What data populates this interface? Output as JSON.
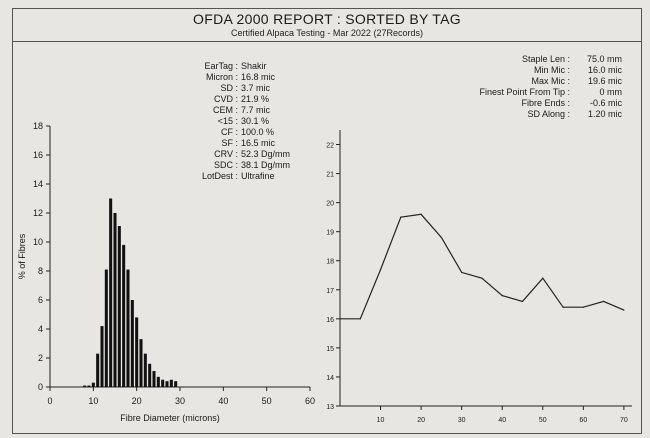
{
  "report": {
    "title": "OFDA 2000 REPORT : SORTED BY TAG",
    "subtitle": "Certified Alpaca Testing - Mar 2022 (27Records)"
  },
  "left_stats": [
    {
      "label": "EarTag :",
      "value": "Shakir"
    },
    {
      "label": "Micron :",
      "value": "16.8 mic"
    },
    {
      "label": "SD :",
      "value": "3.7 mic"
    },
    {
      "label": "CVD :",
      "value": "21.9 %"
    },
    {
      "label": "CEM :",
      "value": "7.7 mic"
    },
    {
      "label": "<15 :",
      "value": "30.1 %"
    },
    {
      "label": "CF :",
      "value": "100.0 %"
    },
    {
      "label": "SF :",
      "value": "16.5 mic"
    },
    {
      "label": "CRV :",
      "value": "52.3 Dg/mm"
    },
    {
      "label": "SDC :",
      "value": "38.1 Dg/mm"
    },
    {
      "label": "LotDest :",
      "value": "Ultrafine"
    }
  ],
  "right_stats": [
    {
      "label": "Staple Len :",
      "value": "75.0 mm"
    },
    {
      "label": "Min Mic :",
      "value": "16.0 mic"
    },
    {
      "label": "Max Mic :",
      "value": "19.6 mic"
    },
    {
      "label": "Finest Point From Tip :",
      "value": "0 mm"
    },
    {
      "label": "Fibre Ends :",
      "value": "-0.6 mic"
    },
    {
      "label": "SD Along :",
      "value": "1.20 mic"
    }
  ],
  "chart_data": [
    {
      "type": "bar",
      "title": "",
      "xlabel": "Fibre Diameter (microns)",
      "ylabel": "% of Fibres",
      "xlim": [
        0,
        60
      ],
      "ylim": [
        0,
        18
      ],
      "x_ticks": [
        "0",
        "10",
        "20",
        "30",
        "40",
        "50",
        "60"
      ],
      "y_ticks": [
        "0",
        "2",
        "4",
        "6",
        "8",
        "10",
        "12",
        "14",
        "16",
        "18"
      ],
      "x": [
        8,
        9,
        10,
        11,
        12,
        13,
        14,
        15,
        16,
        17,
        18,
        19,
        20,
        21,
        22,
        23,
        24,
        25,
        26,
        27,
        28,
        29
      ],
      "values": [
        0.1,
        0.1,
        0.3,
        2.3,
        4.2,
        8.1,
        13.0,
        12.0,
        11.1,
        9.8,
        8.1,
        6.0,
        4.8,
        3.3,
        2.3,
        1.6,
        1.1,
        0.7,
        0.5,
        0.4,
        0.5,
        0.4
      ],
      "grid": false
    },
    {
      "type": "line",
      "title": "",
      "xlabel": "",
      "ylabel": "",
      "xlim": [
        0,
        72
      ],
      "ylim": [
        13,
        22.5
      ],
      "x_ticks": [
        "10",
        "20",
        "30",
        "40",
        "50",
        "60",
        "70"
      ],
      "y_ticks": [
        "13",
        "14",
        "15",
        "16",
        "17",
        "18",
        "19",
        "20",
        "21",
        "22"
      ],
      "x": [
        0,
        5,
        10,
        15,
        20,
        25,
        30,
        35,
        40,
        45,
        50,
        55,
        60,
        65,
        70
      ],
      "values": [
        16.0,
        16.0,
        17.7,
        19.5,
        19.6,
        18.8,
        17.6,
        17.4,
        16.8,
        16.6,
        17.4,
        16.4,
        16.4,
        16.6,
        16.3
      ],
      "grid": false
    }
  ]
}
